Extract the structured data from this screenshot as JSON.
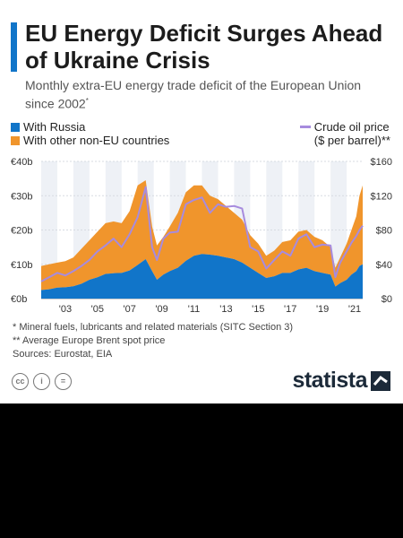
{
  "header": {
    "title": "EU Energy Deficit Surges Ahead of Ukraine Crisis",
    "subtitle": "Monthly extra-EU energy trade deficit of the European Union since 2002",
    "subtitle_mark": "*"
  },
  "legend": {
    "russia": "With Russia",
    "other": "With other non-EU countries",
    "oil_line1": "Crude oil price",
    "oil_line2": "($ per barrel)**"
  },
  "colors": {
    "russia": "#1175c9",
    "other": "#f0952c",
    "oil": "#a78bde",
    "band": "#eef1f6"
  },
  "chart_data": {
    "type": "area",
    "x": [
      2002.0,
      2002.5,
      2003.0,
      2003.5,
      2004.0,
      2004.5,
      2005.0,
      2005.5,
      2006.0,
      2006.5,
      2007.0,
      2007.5,
      2008.0,
      2008.5,
      2008.9,
      2009.2,
      2009.6,
      2010.0,
      2010.5,
      2011.0,
      2011.5,
      2012.0,
      2012.5,
      2013.0,
      2013.5,
      2014.0,
      2014.5,
      2015.0,
      2015.5,
      2016.0,
      2016.5,
      2017.0,
      2017.5,
      2018.0,
      2018.5,
      2019.0,
      2019.5,
      2020.0,
      2020.3,
      2020.6,
      2021.0,
      2021.3,
      2021.6,
      2021.8,
      2022.0
    ],
    "series": [
      {
        "name": "With Russia",
        "stack": true,
        "values": [
          2.5,
          2.7,
          3.2,
          3.3,
          3.6,
          4.3,
          5.5,
          6.2,
          7.2,
          7.4,
          7.5,
          8.2,
          9.8,
          11.5,
          8.0,
          5.5,
          7.0,
          8.0,
          9.0,
          11.0,
          12.5,
          13.0,
          12.8,
          12.5,
          12.0,
          11.5,
          10.5,
          9.0,
          7.5,
          6.0,
          6.5,
          7.5,
          7.5,
          8.5,
          9.0,
          8.0,
          7.5,
          7.0,
          3.5,
          4.5,
          5.5,
          7.0,
          8.0,
          9.5,
          10.0
        ]
      },
      {
        "name": "With other non-EU countries",
        "stack": true,
        "values": [
          7.0,
          7.3,
          7.3,
          7.6,
          8.4,
          10.2,
          11.5,
          13.3,
          14.8,
          15.1,
          14.5,
          17.3,
          23.2,
          23.0,
          13.0,
          10.0,
          11.0,
          13.0,
          16.0,
          20.0,
          20.5,
          20.0,
          17.2,
          16.5,
          15.0,
          13.5,
          12.5,
          9.5,
          8.5,
          6.5,
          7.5,
          9.0,
          9.5,
          11.0,
          11.0,
          10.0,
          9.5,
          8.0,
          5.5,
          7.5,
          10.5,
          13.0,
          16.0,
          20.5,
          23.0
        ]
      },
      {
        "name": "Crude oil price",
        "axis": "right",
        "values": [
          20,
          25,
          30,
          27,
          32,
          38,
          45,
          55,
          62,
          70,
          60,
          75,
          95,
          130,
          60,
          45,
          70,
          77,
          78,
          110,
          115,
          118,
          100,
          110,
          107,
          108,
          105,
          60,
          55,
          35,
          45,
          55,
          50,
          70,
          75,
          60,
          63,
          62,
          25,
          42,
          55,
          65,
          73,
          80,
          85
        ]
      }
    ],
    "title": "EU Energy Deficit Surges Ahead of Ukraine Crisis",
    "subtitle": "Monthly extra-EU energy trade deficit of the European Union since 2002*",
    "ylabel": "",
    "ylim": [
      0,
      40
    ],
    "y2lim": [
      0,
      160
    ],
    "yticks": [
      "€0b",
      "€10b",
      "€20b",
      "€30b",
      "€40b"
    ],
    "y2ticks": [
      "$0",
      "$40",
      "$80",
      "$120",
      "$160"
    ],
    "xticks": [
      "'03",
      "'05",
      "'07",
      "'09",
      "'11",
      "'13",
      "'15",
      "'17",
      "'19",
      "'21"
    ],
    "xtick_years": [
      2003,
      2005,
      2007,
      2009,
      2011,
      2013,
      2015,
      2017,
      2019,
      2021
    ],
    "xlim": [
      2002,
      2022
    ],
    "legend": "top"
  },
  "footer": {
    "note1": "*   Mineral fuels, lubricants and related materials (SITC Section 3)",
    "note2": "** Average Europe Brent spot price",
    "sources": "Sources: Eurostat, EIA",
    "cc_label": "cc",
    "by_label": "i",
    "nd_label": "=",
    "brand": "statista"
  }
}
